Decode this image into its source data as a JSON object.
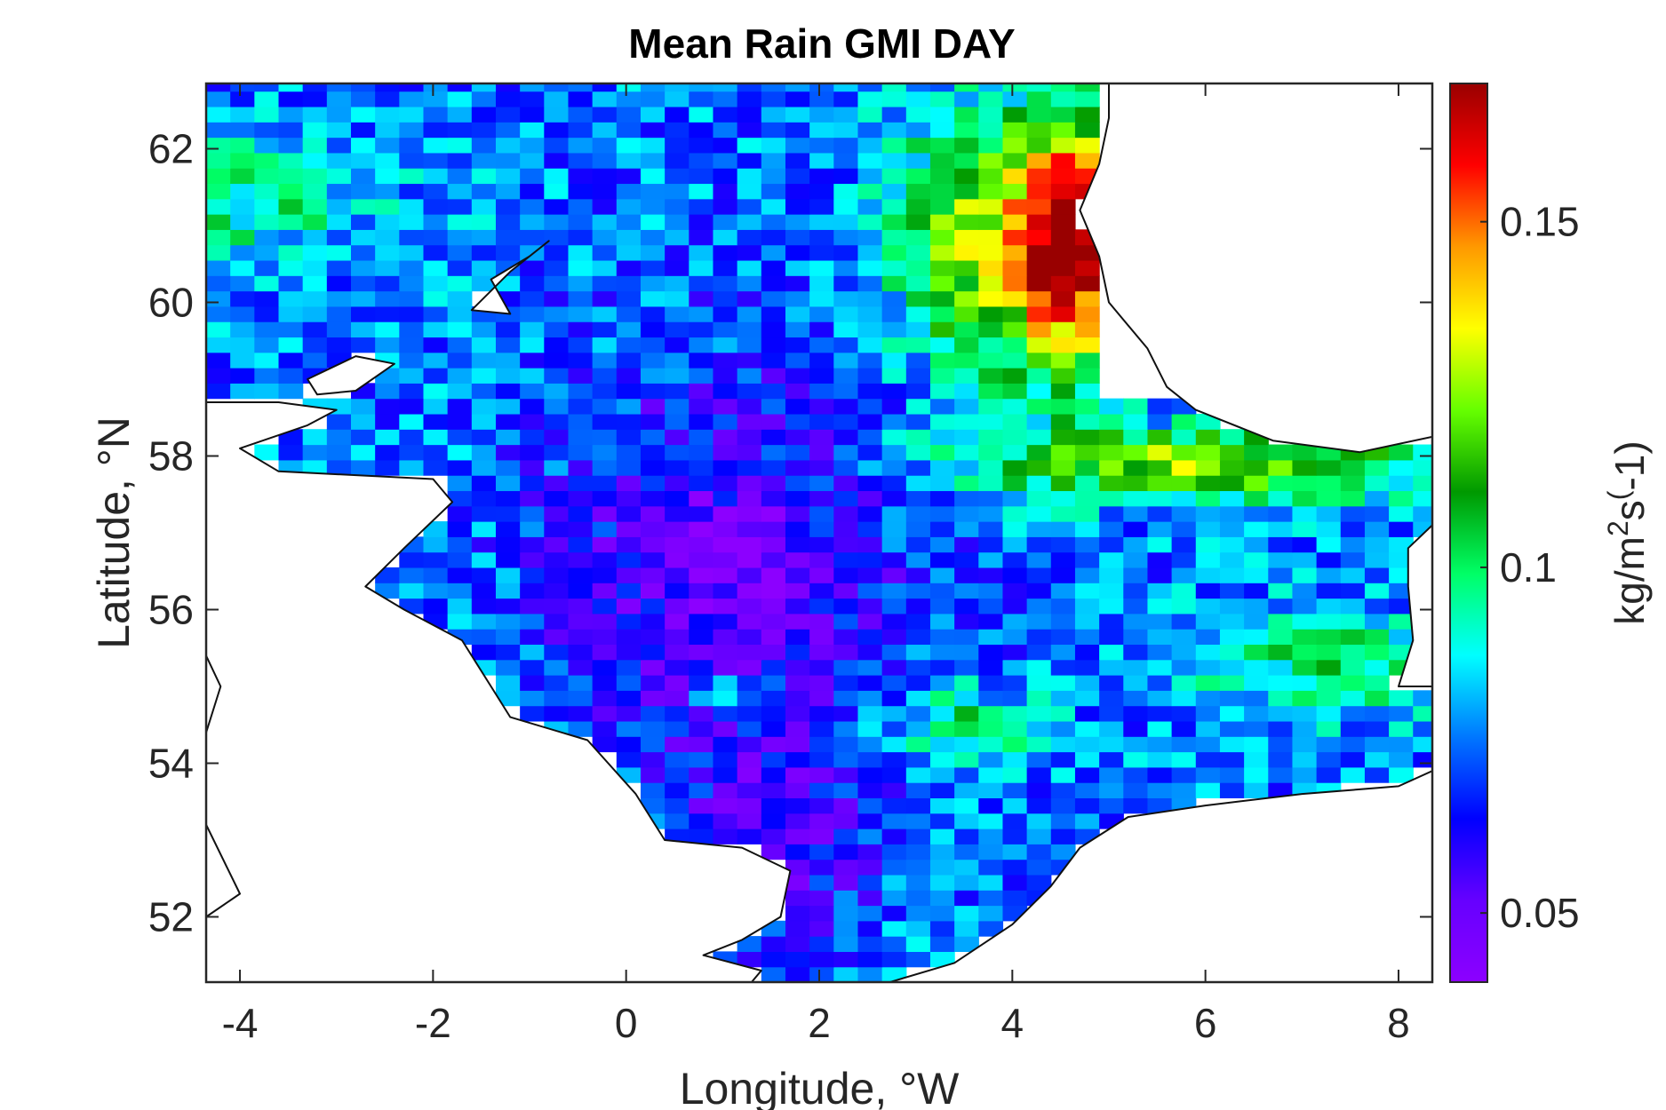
{
  "chart_data": {
    "type": "heatmap",
    "title": "Mean Rain GMI DAY",
    "xlabel": "Longitude, °W",
    "ylabel": "Latitude, °N",
    "colorbar_label": "kg/m^2s^(-1)",
    "xlim": [
      -4.35,
      8.35
    ],
    "ylim": [
      51.15,
      62.85
    ],
    "xticks": [
      -4,
      -2,
      0,
      2,
      4,
      6,
      8
    ],
    "yticks": [
      52,
      54,
      56,
      58,
      60,
      62
    ],
    "clim": [
      0.04,
      0.17
    ],
    "colorbar_ticks": [
      0.05,
      0.1,
      0.15
    ],
    "grid": false,
    "colormap": [
      "#8c00ff",
      "#6600ff",
      "#0000ff",
      "#0077ff",
      "#00ffff",
      "#00ff66",
      "#009900",
      "#66ff00",
      "#ffff00",
      "#ff9900",
      "#ff0000",
      "#990000"
    ],
    "bands": [
      {
        "region": "Norwegian coast strip, lon 4 to 5.2, lat 58.8 to 62.8",
        "approx_value": 0.16
      },
      {
        "region": "Shelf band, lon 3 to 4, lat 58.5 to 62",
        "approx_value": 0.13
      },
      {
        "region": "Skagerrak, lon 3 to 8.3, lat 57.3 to 58.5",
        "approx_value": 0.115
      },
      {
        "region": "Central North Sea, lon 0 to 3, lat 52 to 58",
        "approx_value": 0.06
      },
      {
        "region": "Southern German Bight, lon 2 to 5, lat 53 to 56",
        "approx_value": 0.08
      }
    ]
  }
}
